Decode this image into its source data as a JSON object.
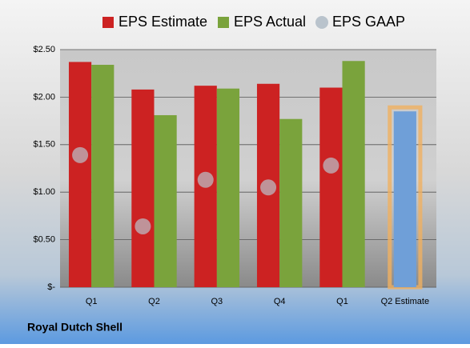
{
  "chart_data": {
    "type": "bar",
    "title": "Royal Dutch Shell",
    "categories": [
      "Q1",
      "Q2",
      "Q3",
      "Q4",
      "Q1",
      "Q2 Estimate"
    ],
    "series": [
      {
        "name": "EPS Estimate",
        "color": "#cc2222",
        "point_colors": [
          "#cc2222",
          "#cc2222",
          "#cc2222",
          "#cc2222",
          "#cc2222",
          "#6f9fd8"
        ],
        "values": [
          2.37,
          2.08,
          2.12,
          2.14,
          2.1,
          1.85
        ]
      },
      {
        "name": "EPS Actual",
        "color": "#7aa33c",
        "values": [
          2.34,
          1.81,
          2.09,
          1.77,
          2.38,
          null
        ]
      },
      {
        "name": "EPS GAAP",
        "color": "#b9c3cc",
        "marker": "circle",
        "values": [
          1.39,
          0.64,
          1.13,
          1.05,
          1.28,
          null
        ]
      }
    ],
    "ylim": [
      0,
      2.5
    ],
    "yticks": [
      {
        "value": 0,
        "label": "$-"
      },
      {
        "value": 0.5,
        "label": "$0.50"
      },
      {
        "value": 1,
        "label": "$1.00"
      },
      {
        "value": 1.5,
        "label": "$1.50"
      },
      {
        "value": 2,
        "label": "$2.00"
      },
      {
        "value": 2.5,
        "label": "$2.50"
      }
    ],
    "grid": true,
    "legend": "top"
  }
}
